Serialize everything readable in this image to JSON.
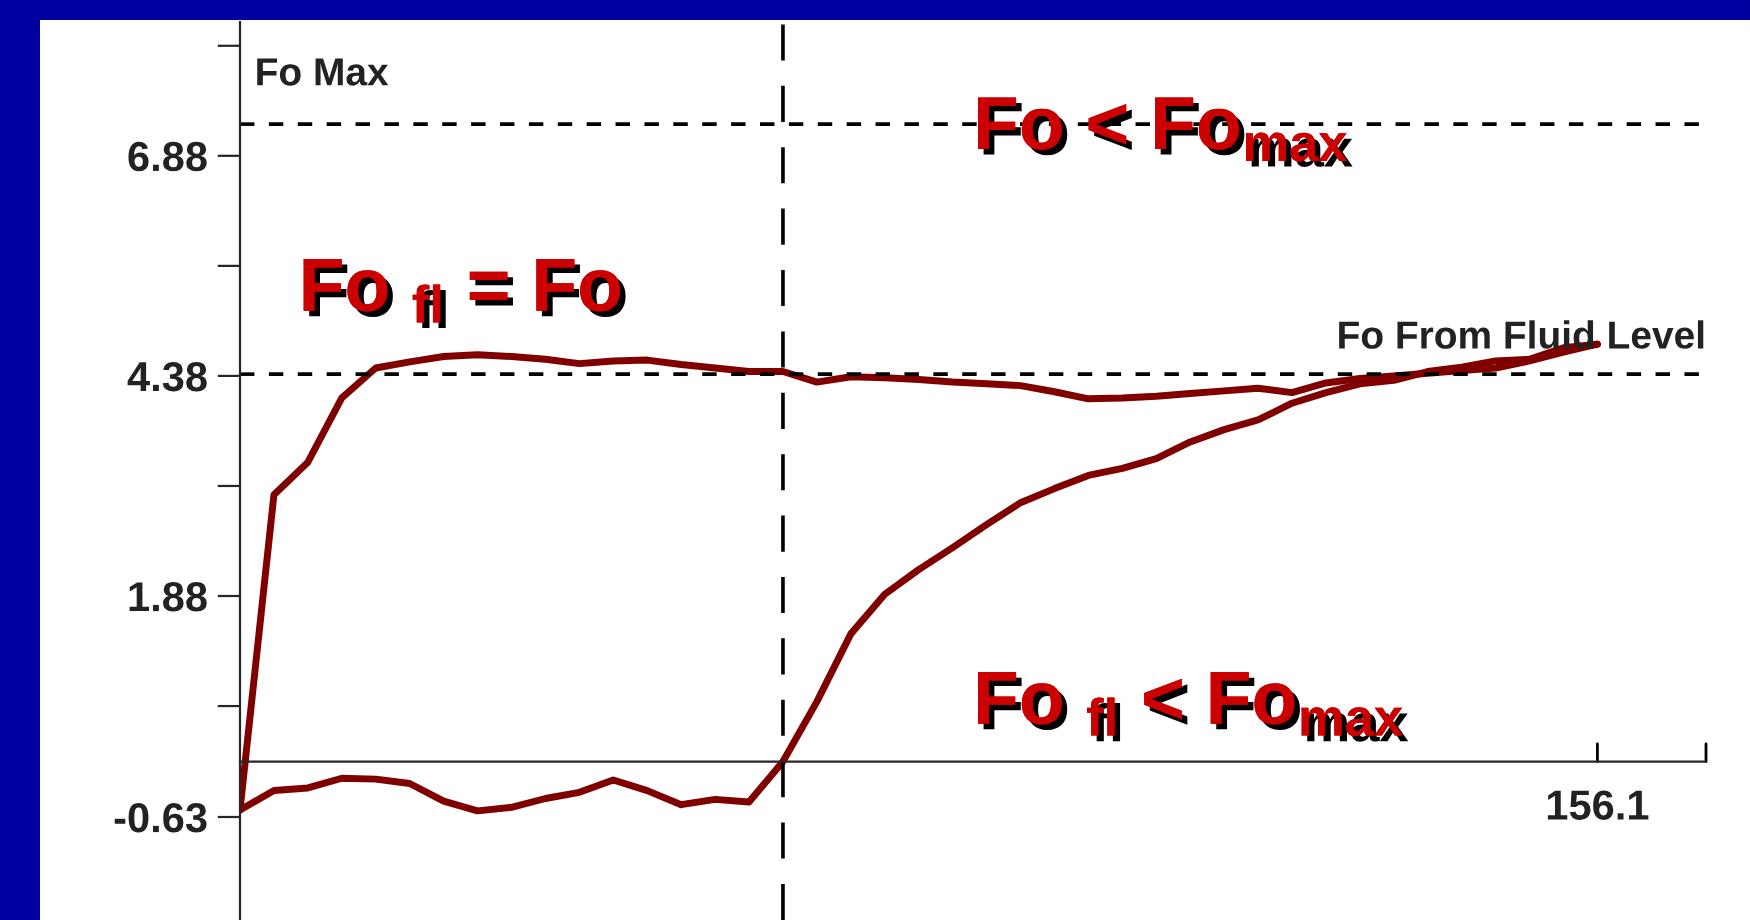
{
  "chart_data": {
    "type": "line",
    "categories": [
      null,
      null,
      null,
      null,
      null,
      null,
      null,
      null,
      null,
      null,
      null,
      null,
      null,
      null,
      null,
      null,
      null,
      null,
      null,
      null,
      null,
      null,
      null,
      null,
      null,
      null,
      null,
      null,
      null,
      null,
      null,
      null,
      null,
      null,
      null,
      null,
      null,
      null,
      null,
      null,
      null
    ],
    "ylim": [
      -1.8,
      8.4
    ],
    "yticks": [
      -0.63,
      {
        "value": 0.63,
        "label": null
      },
      1.88,
      {
        "value": 3.13,
        "label": null
      },
      4.38,
      {
        "value": 5.63,
        "label": null
      },
      6.88,
      {
        "value": 8.13,
        "label": null
      }
    ],
    "series": [
      {
        "color": "#800000",
        "values": [
          -0.55,
          3.03,
          3.4,
          4.13,
          4.47,
          4.54,
          4.6,
          4.62,
          4.6,
          4.57,
          4.52,
          4.55,
          4.56,
          4.51,
          4.47,
          4.43,
          4.43,
          4.31,
          4.37,
          4.36,
          4.34,
          4.31,
          4.29,
          4.27,
          4.2,
          4.12,
          4.13,
          4.15,
          4.18,
          4.21,
          4.24,
          4.19,
          4.3,
          4.35,
          4.38,
          4.41,
          4.44,
          4.47,
          4.55,
          4.65,
          4.74
        ]
      },
      {
        "color": "#800000",
        "values": [
          -0.55,
          -0.33,
          -0.3,
          -0.19,
          -0.2,
          -0.25,
          -0.45,
          -0.56,
          -0.52,
          -0.42,
          -0.35,
          -0.21,
          -0.33,
          -0.49,
          -0.43,
          -0.46,
          0.0,
          0.68,
          1.45,
          1.9,
          2.18,
          2.43,
          2.69,
          2.94,
          3.1,
          3.25,
          3.33,
          3.44,
          3.63,
          3.77,
          3.88,
          4.07,
          4.19,
          4.29,
          4.33,
          4.43,
          4.48,
          4.55,
          4.57,
          4.7,
          4.74
        ]
      }
    ],
    "ref_lines": [
      {
        "axis": "y",
        "value": 7.24,
        "label": "Fo Max",
        "color": "#000000",
        "line_style": "dashed"
      },
      {
        "axis": "y",
        "value": 4.4,
        "label": "Fo From Fluid Level",
        "color": "#000000",
        "line_style": "dashed"
      }
    ],
    "annotations": [
      "Fo $_{fl}$ = Fo",
      "Fo < Fo$_{max}$",
      "Fo $_{fl}$ < Fo$_{max}$",
      "156.1"
    ],
    "grid": false,
    "legend": false
  }
}
